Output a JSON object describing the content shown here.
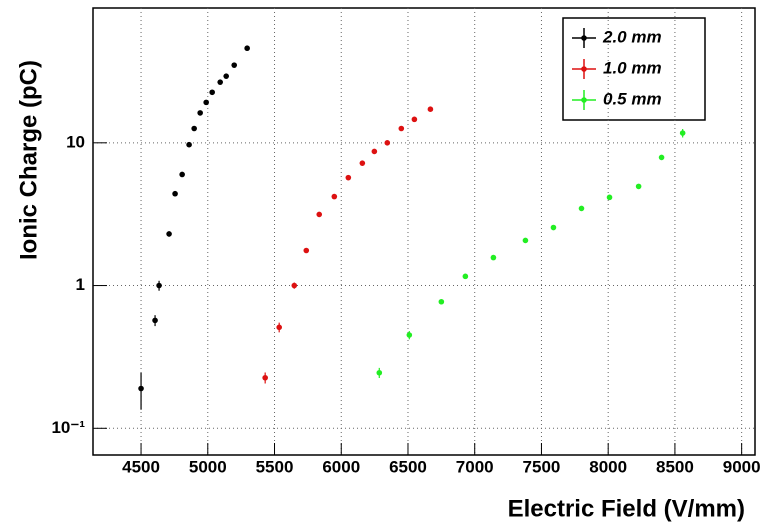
{
  "chart_data": {
    "type": "scatter",
    "xlabel": "Electric Field (V/mm)",
    "ylabel": "Ionic Charge (pC)",
    "xlim": [
      4140,
      9100
    ],
    "xticks": [
      4500,
      5000,
      5500,
      6000,
      6500,
      7000,
      7500,
      8000,
      8500,
      9000
    ],
    "ylim": [
      0.065,
      88
    ],
    "yticks": [
      {
        "value": 0.1,
        "label": "10⁻¹"
      },
      1,
      10
    ],
    "log_y": true,
    "grid": true,
    "legend": "upper right",
    "series": [
      {
        "name": "2.0 mm",
        "color": "#000000",
        "x": [
          4500,
          4605,
          4635,
          4710,
          4755,
          4808,
          4860,
          4898,
          4943,
          4988,
          5033,
          5093,
          5138,
          5198,
          5295
        ],
        "values": [
          0.19,
          0.57,
          1.0,
          2.3,
          4.4,
          6.0,
          9.7,
          12.6,
          16.2,
          19.2,
          22.6,
          26.6,
          29.3,
          35,
          46
        ],
        "errors": [
          0.055,
          0.05,
          0.08,
          0.1,
          0.15,
          0.2,
          0.3,
          0.3,
          0.4,
          0.4,
          0.5,
          0.5,
          0.6,
          0.7,
          0.9
        ]
      },
      {
        "name": "1.0 mm",
        "color": "#dd1111",
        "x": [
          5430,
          5535,
          5648,
          5738,
          5835,
          5948,
          6053,
          6158,
          6248,
          6345,
          6450,
          6548,
          6668
        ],
        "values": [
          0.226,
          0.51,
          1.0,
          1.76,
          3.15,
          4.2,
          5.7,
          7.2,
          8.7,
          10,
          12.6,
          14.6,
          17.2
        ],
        "errors": [
          0.02,
          0.04,
          0.05,
          0.06,
          0.08,
          0.1,
          0.12,
          0.15,
          0.17,
          0.2,
          0.25,
          0.3,
          0.35
        ]
      },
      {
        "name": "0.5 mm",
        "color": "#22ee22",
        "x": [
          6285,
          6510,
          6750,
          6930,
          7140,
          7380,
          7590,
          7800,
          8010,
          8228,
          8400,
          8558
        ],
        "values": [
          0.245,
          0.45,
          0.77,
          1.16,
          1.57,
          2.07,
          2.55,
          3.47,
          4.15,
          4.95,
          7.9,
          11.7
        ],
        "errors": [
          0.02,
          0.03,
          0.03,
          0.04,
          0.05,
          0.06,
          0.07,
          0.09,
          0.1,
          0.12,
          0.3,
          0.8
        ]
      }
    ]
  }
}
